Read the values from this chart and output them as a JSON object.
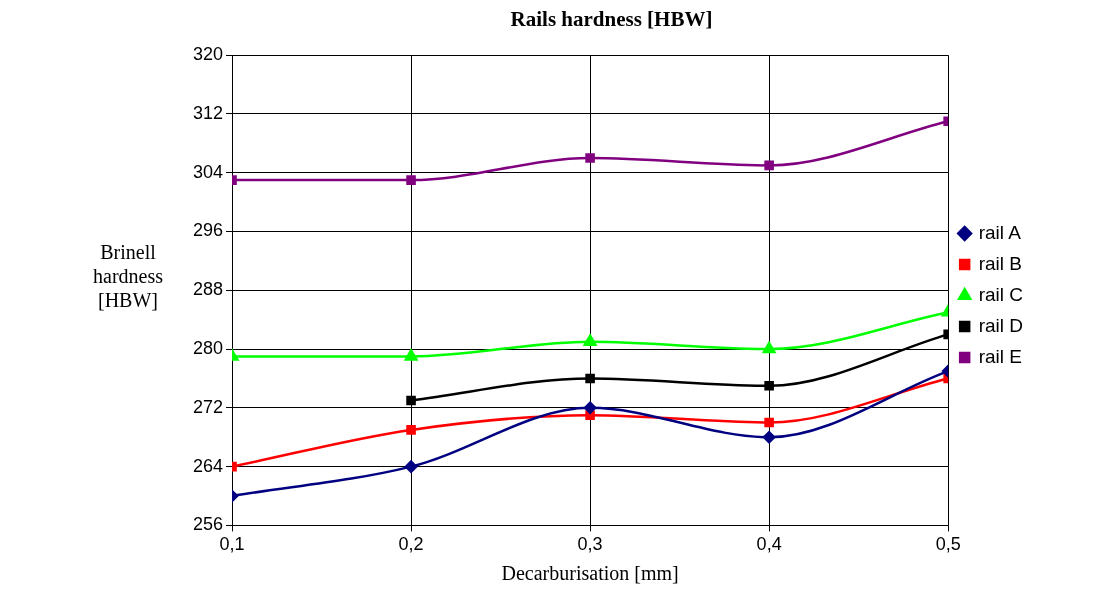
{
  "chart_data": {
    "type": "line",
    "title": "Rails hardness [HBW]",
    "xlabel": "Decarburisation [mm]",
    "ylabel": "Brinell hardness [HBW]",
    "x": [
      0.1,
      0.2,
      0.3,
      0.4,
      0.5
    ],
    "xlim": [
      0.1,
      0.5
    ],
    "xticks": [
      {
        "value": 0.1,
        "label": "0,1"
      },
      {
        "value": 0.2,
        "label": "0,2"
      },
      {
        "value": 0.3,
        "label": "0,3"
      },
      {
        "value": 0.4,
        "label": "0,4"
      },
      {
        "value": 0.5,
        "label": "0,5"
      }
    ],
    "ylim": [
      256,
      320
    ],
    "yticks": [
      256,
      264,
      272,
      280,
      288,
      296,
      304,
      312,
      320
    ],
    "grid": true,
    "legend": "right",
    "series": [
      {
        "name": "rail A",
        "color": "#000080",
        "marker": "diamond",
        "values": [
          260,
          264,
          272,
          268,
          277
        ]
      },
      {
        "name": "rail B",
        "color": "#ff0000",
        "marker": "square",
        "values": [
          264,
          269,
          271,
          270,
          276
        ]
      },
      {
        "name": "rail C",
        "color": "#00ff00",
        "marker": "triangle",
        "values": [
          279,
          279,
          281,
          280,
          285
        ]
      },
      {
        "name": "rail D",
        "color": "#000000",
        "marker": "square",
        "values": [
          null,
          273,
          276,
          275,
          282
        ]
      },
      {
        "name": "rail E",
        "color": "#800080",
        "marker": "square",
        "values": [
          303,
          303,
          306,
          305,
          311
        ]
      }
    ]
  }
}
